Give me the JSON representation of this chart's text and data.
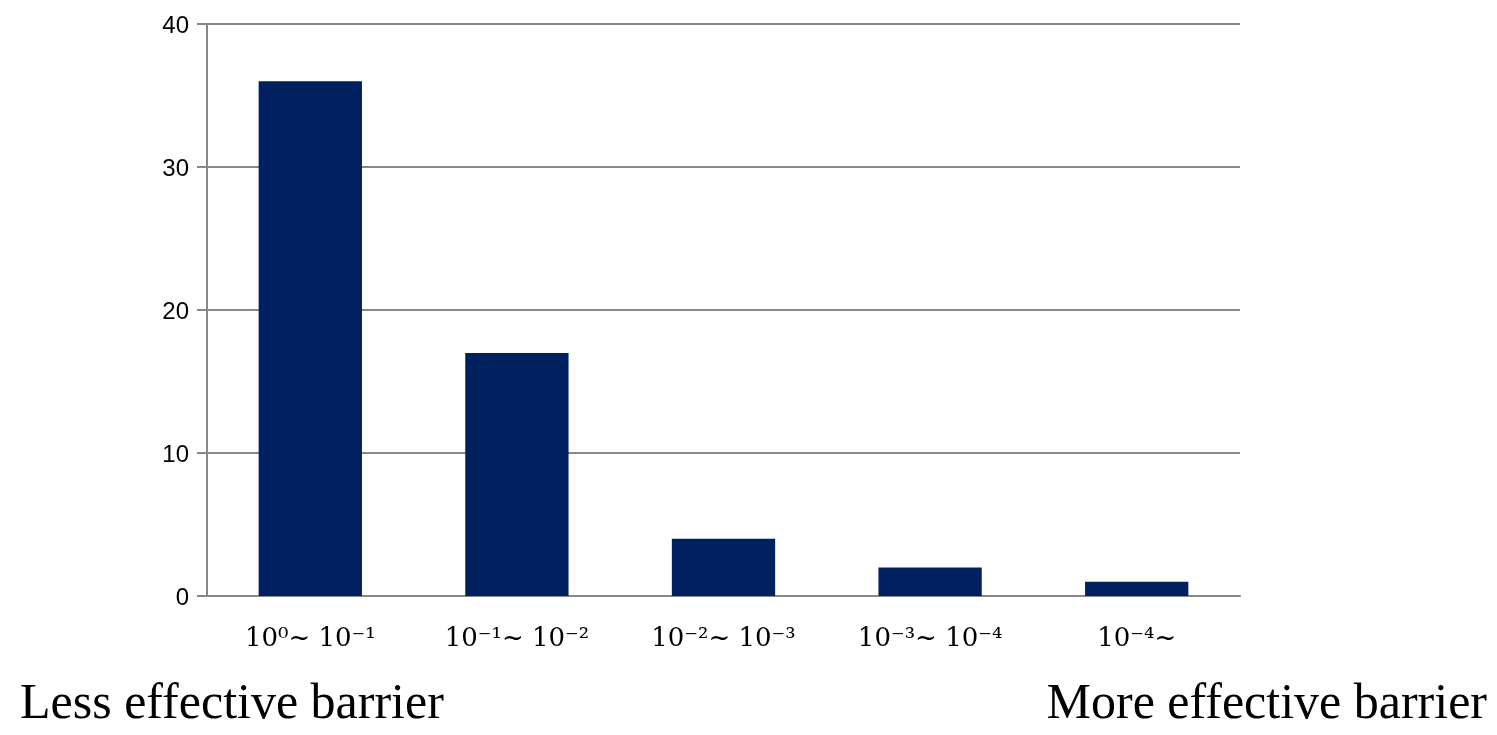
{
  "chart_data": {
    "type": "bar",
    "categories": [
      "10⁰~ 10⁻¹",
      "10⁻¹~ 10⁻²",
      "10⁻²~ 10⁻³",
      "10⁻³~ 10⁻⁴",
      "10⁻⁴~"
    ],
    "values": [
      36,
      17,
      4,
      2,
      1
    ],
    "color": "#002060",
    "ylim": [
      0,
      40
    ],
    "yticks": [
      0,
      10,
      20,
      30,
      40
    ],
    "grid": "y",
    "annotations": [
      "Less effective barrier",
      "More effective barrier"
    ]
  }
}
